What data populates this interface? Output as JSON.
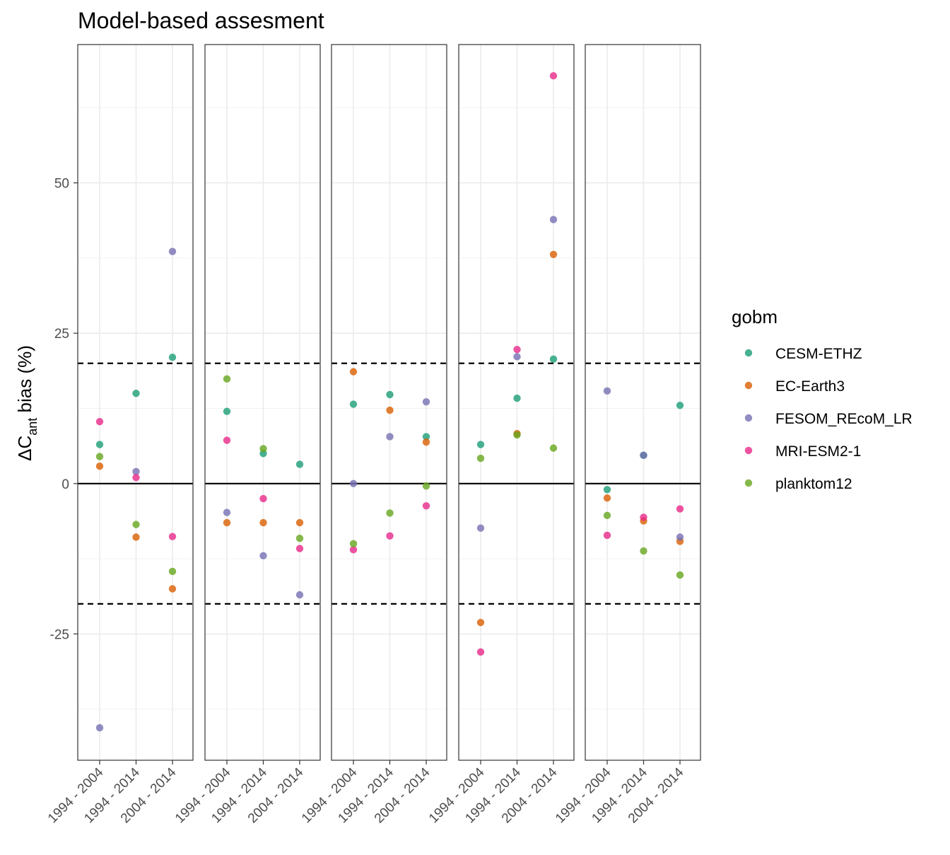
{
  "chart_data": {
    "type": "scatter",
    "title": "Model-based assesment",
    "ylabel": {
      "prefix": "ΔC",
      "subscript": "ant",
      "suffix": " bias (%)"
    },
    "ylim": [
      -46,
      73
    ],
    "yticks": [
      -25,
      0,
      25,
      50
    ],
    "reference_lines": {
      "solid": [
        0
      ],
      "dashed": [
        -20,
        20
      ]
    },
    "grid": true,
    "categories": [
      "1994 - 2004",
      "1994 - 2014",
      "2004 - 2014"
    ],
    "panels": 5,
    "legend": {
      "title": "gobm",
      "position": "right"
    },
    "series": [
      {
        "name": "CESM-ETHZ",
        "color": "#1B9E77",
        "values": [
          [
            6.5,
            15.0,
            21.0
          ],
          [
            12.0,
            5.0,
            3.2
          ],
          [
            13.2,
            14.8,
            7.8
          ],
          [
            6.5,
            14.2,
            20.7
          ],
          [
            -1.0,
            4.7,
            13.0
          ]
        ]
      },
      {
        "name": "EC-Earth3",
        "color": "#D95F02",
        "values": [
          [
            2.9,
            -8.9,
            -17.5
          ],
          [
            -6.5,
            -6.5,
            -6.5
          ],
          [
            18.6,
            12.2,
            6.9
          ],
          [
            -23.1,
            8.3,
            38.1
          ],
          [
            -2.4,
            -6.2,
            -9.6
          ]
        ]
      },
      {
        "name": "FESOM_REcoM_LR",
        "color": "#7570B3",
        "values": [
          [
            -40.6,
            2.0,
            38.6
          ],
          [
            -4.8,
            -12.0,
            -18.5
          ],
          [
            0.0,
            7.8,
            13.6
          ],
          [
            -7.4,
            21.1,
            43.9
          ],
          [
            15.4,
            4.7,
            -8.9
          ]
        ]
      },
      {
        "name": "MRI-ESM2-1",
        "color": "#E7298A",
        "values": [
          [
            10.3,
            1.0,
            -8.8
          ],
          [
            7.2,
            -2.5,
            -10.8
          ],
          [
            -11.0,
            -8.7,
            -3.7
          ],
          [
            -28.0,
            22.3,
            67.8
          ],
          [
            -8.6,
            -5.6,
            -4.2
          ]
        ]
      },
      {
        "name": "planktom12",
        "color": "#66A61E",
        "values": [
          [
            4.5,
            -6.8,
            -14.6
          ],
          [
            17.4,
            5.8,
            -9.1
          ],
          [
            -10.0,
            -4.9,
            -0.4
          ],
          [
            4.2,
            8.1,
            5.9
          ],
          [
            -5.3,
            -11.2,
            -15.2
          ]
        ]
      }
    ]
  }
}
